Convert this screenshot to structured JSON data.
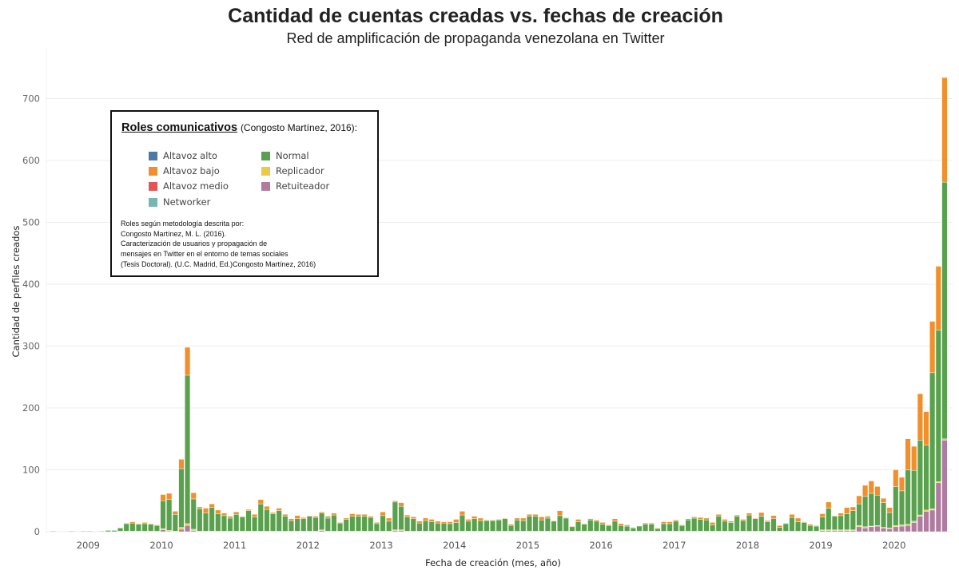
{
  "chart_data": {
    "type": "bar",
    "stacked": true,
    "title": "Cantidad de cuentas creadas vs. fechas de creación",
    "subtitle": "Red de amplificación de propaganda venezolana en Twitter",
    "xlabel": "Fecha de creación (mes, año)",
    "ylabel": "Cantidad de perfiles creados",
    "ylim": [
      0,
      750
    ],
    "yticks": [
      "0",
      "100",
      "200",
      "300",
      "400",
      "500",
      "600",
      "700"
    ],
    "ytick_values": [
      0,
      100,
      200,
      300,
      400,
      500,
      600,
      700
    ],
    "x_start": "2008-07",
    "x_end": "2020-09",
    "x_interval": "month",
    "year_labels": [
      "2009",
      "2010",
      "2011",
      "2012",
      "2013",
      "2014",
      "2015",
      "2016",
      "2017",
      "2018",
      "2019",
      "2020"
    ],
    "grid": true,
    "legend": {
      "title": "Roles comunicativos",
      "title_source": "(Congosto Martínez, 2016):",
      "placement": "upper-left",
      "items": [
        {
          "label": "Altavoz alto",
          "color": "#4e79a7"
        },
        {
          "label": "Altavoz bajo",
          "color": "#f28e2b"
        },
        {
          "label": "Altavoz medio",
          "color": "#e15759"
        },
        {
          "label": "Networker",
          "color": "#76b7b2"
        },
        {
          "label": "Normal",
          "color": "#59a14f"
        },
        {
          "label": "Replicador",
          "color": "#edc948"
        },
        {
          "label": "Retuiteador",
          "color": "#b07aa1"
        }
      ],
      "note": [
        "Roles según metodología descrita por:",
        "Congosto Martínez, M. L. (2016).",
        "Caracterización de usuarios y propagación de",
        "mensajes en Twitter en el entorno de temas sociales",
        "(Tesis Doctoral). (U.C. Madrid, Ed.)Congosto Martínez, 2016)"
      ]
    },
    "series": [
      {
        "name": "Retuiteador",
        "color": "#b07aa1",
        "values": [
          0,
          0,
          0,
          0,
          0,
          0,
          0,
          0,
          0,
          0,
          0,
          0,
          0,
          0,
          0,
          0,
          0,
          0,
          3,
          0,
          0,
          4,
          10,
          2,
          0,
          0,
          0,
          0,
          0,
          0,
          0,
          0,
          0,
          0,
          0,
          0,
          0,
          0,
          0,
          0,
          0,
          0,
          0,
          0,
          2,
          0,
          0,
          0,
          0,
          0,
          0,
          0,
          0,
          0,
          0,
          0,
          2,
          2,
          0,
          0,
          0,
          0,
          0,
          0,
          0,
          0,
          0,
          0,
          0,
          0,
          0,
          0,
          0,
          0,
          0,
          0,
          0,
          0,
          0,
          0,
          0,
          0,
          0,
          0,
          0,
          0,
          0,
          0,
          0,
          0,
          0,
          0,
          0,
          0,
          0,
          0,
          0,
          0,
          0,
          0,
          0,
          0,
          0,
          0,
          0,
          0,
          0,
          0,
          0,
          0,
          0,
          0,
          0,
          0,
          0,
          0,
          0,
          0,
          0,
          0,
          0,
          0,
          0,
          0,
          0,
          0,
          2,
          2,
          2,
          2,
          2,
          2,
          8,
          6,
          8,
          9,
          6,
          5,
          8,
          9,
          10,
          15,
          25,
          33,
          35,
          79,
          148
        ]
      },
      {
        "name": "Replicador",
        "color": "#edc948",
        "values": [
          0,
          0,
          0,
          0,
          0,
          0,
          0,
          0,
          0,
          0,
          0,
          1,
          1,
          1,
          1,
          1,
          1,
          1,
          2,
          2,
          1,
          3,
          3,
          2,
          1,
          1,
          1,
          1,
          1,
          1,
          1,
          1,
          1,
          1,
          1,
          1,
          1,
          1,
          1,
          1,
          1,
          1,
          1,
          1,
          1,
          1,
          1,
          1,
          1,
          1,
          1,
          1,
          1,
          1,
          1,
          1,
          1,
          1,
          1,
          1,
          1,
          1,
          1,
          1,
          1,
          1,
          1,
          1,
          1,
          1,
          1,
          1,
          1,
          1,
          1,
          1,
          1,
          1,
          1,
          1,
          1,
          1,
          1,
          1,
          1,
          1,
          1,
          1,
          1,
          1,
          1,
          1,
          1,
          1,
          1,
          1,
          1,
          1,
          1,
          1,
          1,
          1,
          1,
          1,
          1,
          1,
          1,
          1,
          1,
          1,
          1,
          1,
          1,
          1,
          1,
          1,
          1,
          1,
          1,
          1,
          1,
          1,
          1,
          1,
          1,
          1,
          1,
          1,
          1,
          1,
          1,
          1,
          2,
          2,
          1,
          1,
          1,
          1,
          2,
          2,
          2,
          2,
          2,
          2,
          2,
          2,
          2,
          2,
          4,
          3,
          4,
          5,
          5
        ]
      },
      {
        "name": "Normal",
        "color": "#59a14f",
        "values": [
          1,
          0,
          0,
          1,
          0,
          1,
          1,
          0,
          1,
          2,
          2,
          5,
          12,
          13,
          11,
          12,
          11,
          9,
          45,
          50,
          27,
          95,
          240,
          49,
          36,
          29,
          38,
          28,
          25,
          21,
          27,
          23,
          33,
          23,
          44,
          35,
          28,
          33,
          24,
          17,
          20,
          20,
          24,
          22,
          27,
          21,
          26,
          13,
          19,
          24,
          24,
          24,
          22,
          12,
          25,
          16,
          45,
          38,
          23,
          20,
          13,
          17,
          15,
          13,
          13,
          12,
          14,
          26,
          16,
          20,
          17,
          17,
          17,
          18,
          20,
          9,
          18,
          17,
          24,
          24,
          18,
          21,
          16,
          25,
          21,
          7,
          15,
          11,
          18,
          16,
          11,
          9,
          16,
          9,
          8,
          5,
          8,
          11,
          11,
          4,
          12,
          12,
          16,
          9,
          18,
          21,
          19,
          18,
          10,
          24,
          16,
          14,
          24,
          17,
          26,
          20,
          24,
          15,
          20,
          6,
          12,
          22,
          15,
          14,
          9,
          8,
          21,
          35,
          22,
          23,
          26,
          31,
          35,
          49,
          53,
          49,
          40,
          25,
          63,
          55,
          88,
          82,
          121,
          105,
          220,
          245,
          415
        ]
      },
      {
        "name": "Altavoz bajo",
        "color": "#f28e2b",
        "values": [
          0,
          0,
          0,
          0,
          0,
          0,
          0,
          0,
          0,
          0,
          0,
          0,
          1,
          2,
          1,
          2,
          1,
          1,
          10,
          10,
          5,
          15,
          45,
          10,
          3,
          8,
          6,
          6,
          4,
          3,
          4,
          1,
          2,
          4,
          7,
          5,
          2,
          4,
          3,
          3,
          5,
          2,
          1,
          2,
          2,
          3,
          3,
          1,
          2,
          4,
          3,
          3,
          2,
          2,
          6,
          5,
          2,
          6,
          3,
          3,
          3,
          4,
          4,
          3,
          2,
          3,
          5,
          6,
          3,
          4,
          4,
          1,
          1,
          1,
          1,
          2,
          3,
          4,
          3,
          3,
          5,
          3,
          1,
          8,
          1,
          1,
          4,
          1,
          2,
          2,
          3,
          1,
          4,
          3,
          2,
          1,
          0,
          2,
          2,
          1,
          3,
          3,
          2,
          1,
          2,
          2,
          3,
          3,
          4,
          3,
          3,
          2,
          2,
          2,
          3,
          1,
          6,
          2,
          5,
          3,
          1,
          5,
          6,
          1,
          2,
          1,
          5,
          10,
          1,
          4,
          10,
          6,
          13,
          18,
          20,
          14,
          7,
          8,
          27,
          22,
          50,
          39,
          75,
          54,
          83,
          103,
          169
        ]
      }
    ]
  }
}
